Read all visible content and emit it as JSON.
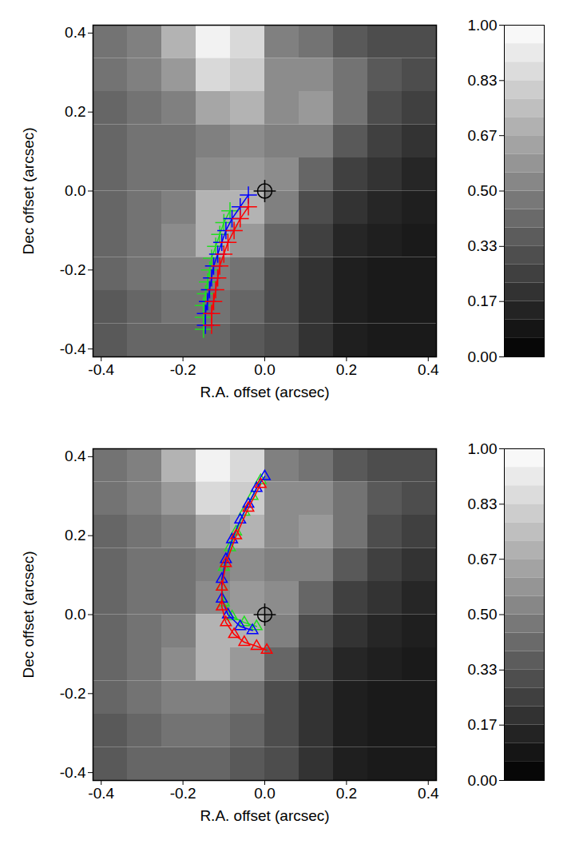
{
  "chart_data": [
    {
      "type": "heatmap",
      "x_label": "R.A. offset (arcsec)",
      "y_label": "Dec offset (arcsec)",
      "xlim": [
        -0.42,
        0.42
      ],
      "ylim": [
        -0.42,
        0.42
      ],
      "xticks": [
        {
          "value": -0.4,
          "label": "-0.4"
        },
        {
          "value": -0.2,
          "label": "-0.2"
        },
        {
          "value": 0,
          "label": "0.0"
        },
        {
          "value": 0.2,
          "label": "0.2"
        },
        {
          "value": 0.4,
          "label": "0.4"
        }
      ],
      "yticks": [
        {
          "value": -0.4,
          "label": "-0.4"
        },
        {
          "value": -0.2,
          "label": "-0.2"
        },
        {
          "value": 0,
          "label": "0.0"
        },
        {
          "value": 0.2,
          "label": "0.2"
        },
        {
          "value": 0.4,
          "label": "0.4"
        }
      ],
      "map": {
        "x_edges": [
          -0.42,
          -0.336,
          -0.252,
          -0.168,
          -0.084,
          0,
          0.084,
          0.168,
          0.252,
          0.336,
          0.42
        ],
        "y_edges": [
          0.42,
          0.336,
          0.252,
          0.168,
          0.084,
          0,
          -0.084,
          -0.168,
          -0.252,
          -0.336,
          -0.42
        ],
        "values": [
          [
            0.45,
            0.5,
            0.7,
            0.95,
            0.85,
            0.5,
            0.45,
            0.35,
            0.3,
            0.3
          ],
          [
            0.45,
            0.5,
            0.6,
            0.85,
            0.8,
            0.55,
            0.55,
            0.45,
            0.35,
            0.3
          ],
          [
            0.4,
            0.45,
            0.5,
            0.65,
            0.7,
            0.55,
            0.6,
            0.45,
            0.3,
            0.25
          ],
          [
            0.4,
            0.45,
            0.45,
            0.5,
            0.55,
            0.5,
            0.5,
            0.35,
            0.25,
            0.2
          ],
          [
            0.4,
            0.45,
            0.45,
            0.55,
            0.6,
            0.55,
            0.4,
            0.25,
            0.2,
            0.15
          ],
          [
            0.4,
            0.45,
            0.5,
            0.7,
            0.7,
            0.5,
            0.3,
            0.2,
            0.15,
            0.12
          ],
          [
            0.4,
            0.45,
            0.55,
            0.7,
            0.6,
            0.4,
            0.25,
            0.15,
            0.12,
            0.1
          ],
          [
            0.4,
            0.45,
            0.5,
            0.5,
            0.45,
            0.3,
            0.2,
            0.12,
            0.1,
            0.1
          ],
          [
            0.35,
            0.4,
            0.45,
            0.45,
            0.4,
            0.3,
            0.2,
            0.12,
            0.1,
            0.1
          ],
          [
            0.35,
            0.4,
            0.4,
            0.4,
            0.35,
            0.3,
            0.2,
            0.12,
            0.1,
            0.1
          ]
        ]
      },
      "colorbar": {
        "range": [
          0,
          1
        ],
        "ticks": [
          {
            "value": 0,
            "label": "0.00"
          },
          {
            "value": 0.167,
            "label": "0.17"
          },
          {
            "value": 0.333,
            "label": "0.33"
          },
          {
            "value": 0.5,
            "label": "0.50"
          },
          {
            "value": 0.667,
            "label": "0.67"
          },
          {
            "value": 0.833,
            "label": "0.83"
          },
          {
            "value": 1,
            "label": "1.00"
          }
        ]
      },
      "center": {
        "x": 0,
        "y": 0
      },
      "series": [
        {
          "color": "#22dd22",
          "marker": "plus",
          "x": [
            -0.085,
            -0.1,
            -0.11,
            -0.12,
            -0.13,
            -0.135,
            -0.14,
            -0.145,
            -0.15,
            -0.15,
            -0.15
          ],
          "y": [
            -0.05,
            -0.08,
            -0.11,
            -0.14,
            -0.17,
            -0.2,
            -0.23,
            -0.26,
            -0.29,
            -0.32,
            -0.35
          ]
        },
        {
          "color": "#0000ff",
          "marker": "plus",
          "x": [
            -0.04,
            -0.06,
            -0.08,
            -0.095,
            -0.105,
            -0.115,
            -0.125,
            -0.13,
            -0.135,
            -0.14,
            -0.145,
            -0.145
          ],
          "y": [
            -0.01,
            -0.04,
            -0.07,
            -0.1,
            -0.13,
            -0.16,
            -0.19,
            -0.22,
            -0.25,
            -0.28,
            -0.31,
            -0.34
          ]
        },
        {
          "color": "#ff0000",
          "marker": "plus",
          "x": [
            -0.04,
            -0.06,
            -0.075,
            -0.09,
            -0.1,
            -0.11,
            -0.115,
            -0.12,
            -0.125,
            -0.13,
            -0.13
          ],
          "y": [
            -0.04,
            -0.07,
            -0.1,
            -0.13,
            -0.16,
            -0.19,
            -0.22,
            -0.25,
            -0.28,
            -0.31,
            -0.34
          ]
        }
      ]
    },
    {
      "type": "heatmap",
      "x_label": "R.A. offset (arcsec)",
      "y_label": "Dec offset (arcsec)",
      "xlim": [
        -0.42,
        0.42
      ],
      "ylim": [
        -0.42,
        0.42
      ],
      "xticks": [
        {
          "value": -0.4,
          "label": "-0.4"
        },
        {
          "value": -0.2,
          "label": "-0.2"
        },
        {
          "value": 0,
          "label": "0.0"
        },
        {
          "value": 0.2,
          "label": "0.2"
        },
        {
          "value": 0.4,
          "label": "0.4"
        }
      ],
      "yticks": [
        {
          "value": -0.4,
          "label": "-0.4"
        },
        {
          "value": -0.2,
          "label": "-0.2"
        },
        {
          "value": 0,
          "label": "0.0"
        },
        {
          "value": 0.2,
          "label": "0.2"
        },
        {
          "value": 0.4,
          "label": "0.4"
        }
      ],
      "map": {
        "x_edges": [
          -0.42,
          -0.336,
          -0.252,
          -0.168,
          -0.084,
          0,
          0.084,
          0.168,
          0.252,
          0.336,
          0.42
        ],
        "y_edges": [
          0.42,
          0.336,
          0.252,
          0.168,
          0.084,
          0,
          -0.084,
          -0.168,
          -0.252,
          -0.336,
          -0.42
        ],
        "values": [
          [
            0.45,
            0.5,
            0.7,
            0.95,
            0.85,
            0.5,
            0.45,
            0.35,
            0.3,
            0.3
          ],
          [
            0.45,
            0.5,
            0.6,
            0.85,
            0.8,
            0.55,
            0.55,
            0.45,
            0.35,
            0.3
          ],
          [
            0.4,
            0.45,
            0.5,
            0.65,
            0.7,
            0.55,
            0.6,
            0.45,
            0.3,
            0.25
          ],
          [
            0.4,
            0.45,
            0.45,
            0.5,
            0.55,
            0.5,
            0.5,
            0.35,
            0.25,
            0.2
          ],
          [
            0.4,
            0.45,
            0.45,
            0.55,
            0.6,
            0.55,
            0.4,
            0.25,
            0.2,
            0.15
          ],
          [
            0.4,
            0.45,
            0.5,
            0.7,
            0.7,
            0.5,
            0.3,
            0.2,
            0.15,
            0.12
          ],
          [
            0.4,
            0.45,
            0.55,
            0.7,
            0.6,
            0.4,
            0.25,
            0.15,
            0.12,
            0.1
          ],
          [
            0.4,
            0.45,
            0.5,
            0.5,
            0.45,
            0.3,
            0.2,
            0.12,
            0.1,
            0.1
          ],
          [
            0.35,
            0.4,
            0.45,
            0.45,
            0.4,
            0.3,
            0.2,
            0.12,
            0.1,
            0.1
          ],
          [
            0.35,
            0.4,
            0.4,
            0.4,
            0.35,
            0.3,
            0.2,
            0.12,
            0.1,
            0.1
          ]
        ]
      },
      "colorbar": {
        "range": [
          0,
          1
        ],
        "ticks": [
          {
            "value": 0,
            "label": "0.00"
          },
          {
            "value": 0.167,
            "label": "0.17"
          },
          {
            "value": 0.333,
            "label": "0.33"
          },
          {
            "value": 0.5,
            "label": "0.50"
          },
          {
            "value": 0.667,
            "label": "0.67"
          },
          {
            "value": 0.833,
            "label": "0.83"
          },
          {
            "value": 1,
            "label": "1.00"
          }
        ]
      },
      "center": {
        "x": 0,
        "y": 0
      },
      "series": [
        {
          "color": "#22dd22",
          "marker": "triangle",
          "x": [
            -0.01,
            -0.03,
            -0.05,
            -0.07,
            -0.085,
            -0.1,
            -0.105,
            -0.1,
            -0.08,
            -0.05,
            -0.02
          ],
          "y": [
            0.34,
            0.3,
            0.26,
            0.21,
            0.17,
            0.12,
            0.07,
            0.03,
            -0.005,
            -0.02,
            -0.03
          ]
        },
        {
          "color": "#0000ff",
          "marker": "triangle",
          "x": [
            0,
            -0.02,
            -0.04,
            -0.06,
            -0.08,
            -0.095,
            -0.105,
            -0.105,
            -0.09,
            -0.06,
            -0.03
          ],
          "y": [
            0.35,
            0.32,
            0.28,
            0.24,
            0.19,
            0.14,
            0.09,
            0.04,
            0,
            -0.03,
            -0.04
          ]
        },
        {
          "color": "#ff0000",
          "marker": "triangle",
          "x": [
            -0.01,
            -0.04,
            -0.07,
            -0.095,
            -0.105,
            -0.105,
            -0.095,
            -0.075,
            -0.05,
            -0.02,
            0.005
          ],
          "y": [
            0.33,
            0.27,
            0.2,
            0.13,
            0.07,
            0.02,
            -0.02,
            -0.05,
            -0.07,
            -0.08,
            -0.09
          ]
        }
      ]
    }
  ]
}
